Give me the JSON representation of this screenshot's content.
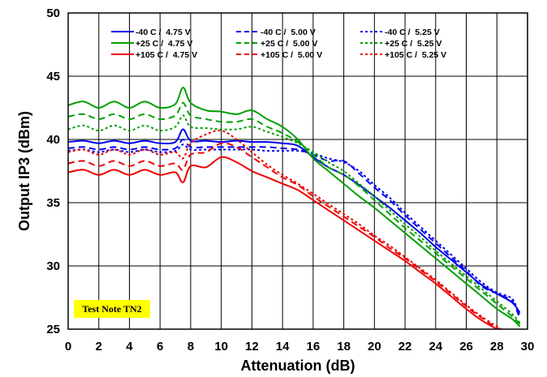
{
  "chart_data": {
    "type": "line",
    "xlabel": "Attenuation (dB)",
    "ylabel": "Output IP3 (dBm)",
    "xlim": [
      0,
      30
    ],
    "ylim": [
      25,
      50
    ],
    "xticks": [
      0,
      2,
      4,
      6,
      8,
      10,
      12,
      14,
      16,
      18,
      20,
      22,
      24,
      26,
      28,
      30
    ],
    "yticks": [
      25,
      30,
      35,
      40,
      45,
      50
    ],
    "grid": true,
    "legend_placement": "top",
    "note": "Test Note TN2",
    "note_color": "#ffff00",
    "colors": {
      "-40": "#0000ee",
      "+25": "#00a000",
      "+105": "#ee0000"
    },
    "series": [
      {
        "name": "-40 C /  4.75 V",
        "color": "#0000ee",
        "dash": "solid",
        "x": [
          0,
          1,
          2,
          3,
          4,
          5,
          6,
          7,
          7.5,
          8,
          9,
          10,
          11,
          12,
          13,
          14,
          15,
          16,
          17,
          18,
          19,
          20,
          21,
          22,
          23,
          24,
          25,
          26,
          27,
          28,
          29,
          29.5
        ],
        "y": [
          39.8,
          39.9,
          39.7,
          39.9,
          39.7,
          39.9,
          39.7,
          39.8,
          40.8,
          39.9,
          39.9,
          39.8,
          39.9,
          39.8,
          39.8,
          39.7,
          39.5,
          38.6,
          37.8,
          37.2,
          36.4,
          35.5,
          34.6,
          33.6,
          32.6,
          31.5,
          30.5,
          29.5,
          28.5,
          27.8,
          27.1,
          26.3
        ]
      },
      {
        "name": "-40 C /  5.00 V",
        "color": "#0000ee",
        "dash": "dashed",
        "x": [
          0,
          1,
          2,
          3,
          4,
          5,
          6,
          7,
          7.5,
          8,
          9,
          10,
          11,
          12,
          13,
          14,
          15,
          16,
          17,
          18,
          19,
          20,
          21,
          22,
          23,
          24,
          25,
          26,
          27,
          28,
          29,
          29.5
        ],
        "y": [
          39.3,
          39.4,
          39.2,
          39.4,
          39.2,
          39.4,
          39.2,
          39.3,
          40.0,
          39.4,
          39.4,
          39.4,
          39.4,
          39.4,
          39.4,
          39.3,
          39.2,
          38.8,
          38.3,
          38.3,
          37.3,
          36.2,
          35.2,
          34.0,
          32.9,
          31.8,
          30.7,
          29.6,
          28.4,
          27.8,
          27.2,
          25.8
        ]
      },
      {
        "name": "-40 C /  5.25 V",
        "color": "#0000ee",
        "dash": "dotted",
        "x": [
          0,
          1,
          2,
          3,
          4,
          5,
          6,
          7,
          7.5,
          8,
          9,
          10,
          11,
          12,
          13,
          14,
          15,
          16,
          17,
          18,
          19,
          20,
          21,
          22,
          23,
          24,
          25,
          26,
          27,
          28,
          29,
          29.5
        ],
        "y": [
          39.1,
          39.2,
          39.0,
          39.2,
          39.0,
          39.2,
          39.0,
          39.1,
          39.6,
          39.2,
          39.2,
          39.2,
          39.2,
          39.2,
          39.1,
          39.1,
          39.1,
          38.9,
          38.5,
          38.2,
          37.5,
          36.4,
          35.4,
          34.2,
          33.1,
          32.0,
          30.9,
          29.8,
          28.7,
          27.9,
          27.4,
          26.0
        ]
      },
      {
        "name": "+25 C /  4.75 V",
        "color": "#00a000",
        "dash": "solid",
        "x": [
          0,
          1,
          2,
          3,
          4,
          5,
          6,
          7,
          7.5,
          8,
          9,
          10,
          11,
          12,
          13,
          14,
          15,
          16,
          17,
          18,
          19,
          20,
          21,
          22,
          23,
          24,
          25,
          26,
          27,
          28,
          29,
          29.5
        ],
        "y": [
          42.7,
          43.0,
          42.5,
          43.0,
          42.5,
          43.0,
          42.5,
          42.8,
          44.1,
          42.9,
          42.3,
          42.2,
          42.0,
          42.3,
          41.6,
          41.0,
          40.0,
          38.5,
          37.5,
          36.5,
          35.5,
          34.6,
          33.6,
          32.6,
          31.6,
          30.6,
          29.6,
          28.6,
          27.6,
          26.6,
          25.8,
          25.2
        ]
      },
      {
        "name": "+25 C /  5.00 V",
        "color": "#00a000",
        "dash": "dashed",
        "x": [
          0,
          1,
          2,
          3,
          4,
          5,
          6,
          7,
          7.5,
          8,
          9,
          10,
          11,
          12,
          13,
          14,
          15,
          16,
          17,
          18,
          19,
          20,
          21,
          22,
          23,
          24,
          25,
          26,
          27,
          28,
          29,
          29.5
        ],
        "y": [
          41.8,
          42.0,
          41.6,
          42.0,
          41.6,
          42.0,
          41.6,
          41.9,
          42.9,
          41.9,
          41.6,
          41.4,
          41.4,
          41.6,
          41.0,
          40.5,
          39.8,
          38.8,
          37.8,
          37.2,
          36.3,
          35.2,
          34.1,
          33.0,
          32.0,
          31.0,
          30.0,
          29.0,
          28.0,
          27.0,
          26.0,
          25.4
        ]
      },
      {
        "name": "+25 C /  5.25 V",
        "color": "#00a000",
        "dash": "dotted",
        "x": [
          0,
          1,
          2,
          3,
          4,
          5,
          6,
          7,
          7.5,
          8,
          9,
          10,
          11,
          12,
          13,
          14,
          15,
          16,
          17,
          18,
          19,
          20,
          21,
          22,
          23,
          24,
          25,
          26,
          27,
          28,
          29,
          29.5
        ],
        "y": [
          40.8,
          41.1,
          40.7,
          41.1,
          40.7,
          41.1,
          40.7,
          41.0,
          41.9,
          41.0,
          40.9,
          40.8,
          40.8,
          41.0,
          40.6,
          40.2,
          39.7,
          39.0,
          38.2,
          37.5,
          36.5,
          35.5,
          34.4,
          33.3,
          32.3,
          31.2,
          30.2,
          29.2,
          28.2,
          27.2,
          26.2,
          25.5
        ]
      },
      {
        "name": "+105 C /  4.75 V",
        "color": "#ee0000",
        "dash": "solid",
        "x": [
          0,
          1,
          2,
          3,
          4,
          5,
          6,
          7,
          7.5,
          8,
          9,
          10,
          11,
          12,
          13,
          14,
          15,
          16,
          17,
          18,
          19,
          20,
          21,
          22,
          23,
          24,
          25,
          26,
          27,
          28,
          28.3
        ],
        "y": [
          37.4,
          37.6,
          37.2,
          37.6,
          37.2,
          37.6,
          37.2,
          37.4,
          36.6,
          37.9,
          37.8,
          38.6,
          38.2,
          37.5,
          37.0,
          36.5,
          36.0,
          35.2,
          34.4,
          33.6,
          32.8,
          32.0,
          31.2,
          30.4,
          29.5,
          28.6,
          27.6,
          26.6,
          25.7,
          25.0,
          24.8
        ]
      },
      {
        "name": "+105 C /  5.00 V",
        "color": "#ee0000",
        "dash": "dashed",
        "x": [
          0,
          1,
          2,
          3,
          4,
          5,
          6,
          7,
          7.5,
          8,
          9,
          10,
          11,
          12,
          13,
          14,
          15,
          16,
          17,
          18,
          19,
          20,
          21,
          22,
          23,
          24,
          25,
          26,
          27,
          28,
          28.3
        ],
        "y": [
          38.1,
          38.3,
          37.9,
          38.3,
          37.9,
          38.3,
          37.9,
          38.1,
          37.6,
          38.8,
          39.0,
          39.7,
          39.4,
          38.6,
          37.8,
          37.0,
          36.4,
          35.5,
          34.7,
          33.9,
          33.1,
          32.3,
          31.4,
          30.6,
          29.7,
          28.8,
          27.8,
          26.8,
          25.9,
          25.1,
          24.9
        ]
      },
      {
        "name": "+105 C /  5.25 V",
        "color": "#ee0000",
        "dash": "dotted",
        "x": [
          0,
          1,
          2,
          3,
          4,
          5,
          6,
          7,
          7.5,
          8,
          9,
          10,
          11,
          12,
          13,
          14,
          15,
          16,
          17,
          18,
          19,
          20,
          21,
          22,
          23,
          24,
          25,
          26,
          27,
          28,
          28.3
        ],
        "y": [
          39.0,
          39.2,
          38.8,
          39.2,
          38.8,
          39.2,
          38.8,
          39.0,
          38.5,
          39.7,
          40.4,
          40.7,
          40.0,
          39.0,
          38.0,
          37.2,
          36.5,
          35.7,
          34.9,
          34.1,
          33.3,
          32.4,
          31.6,
          30.7,
          29.8,
          28.9,
          27.9,
          26.9,
          26.0,
          25.2,
          25.0
        ]
      }
    ]
  }
}
